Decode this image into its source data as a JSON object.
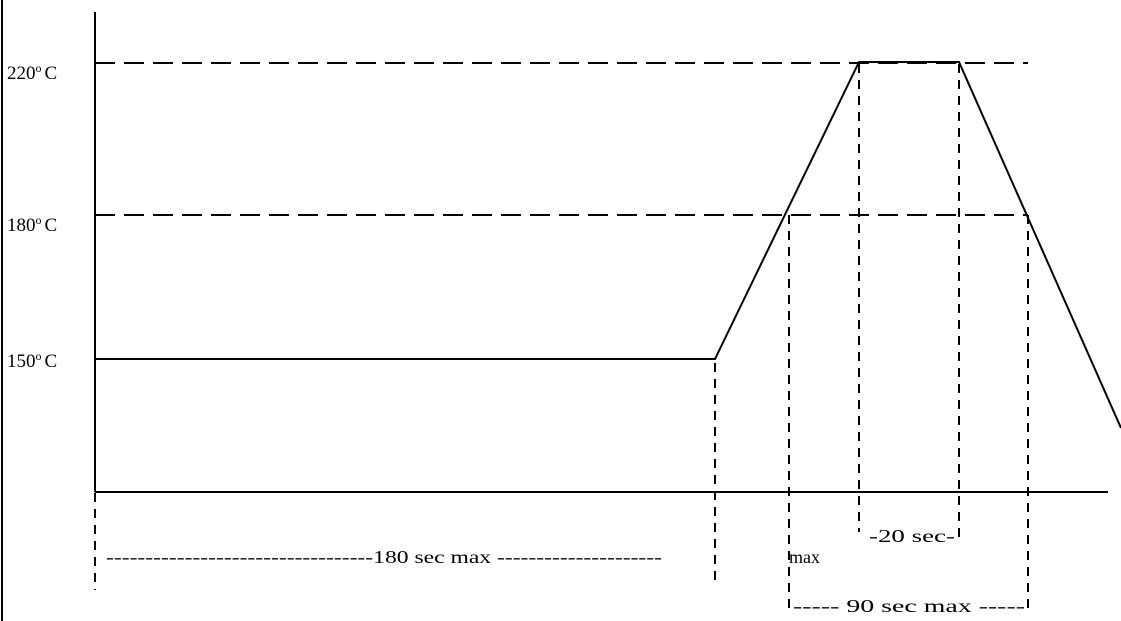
{
  "y_labels": {
    "t220": "220",
    "t180": "180",
    "t150": "150",
    "degree_mark": "o",
    "unit": "C"
  },
  "time_labels": {
    "preheat": "----------------------------------180 sec max ---------------------",
    "ramp_max": "max",
    "peak": "-20 sec-",
    "above_liquidus": "----- 90 sec max -----"
  },
  "colors": {
    "stroke": "#000000",
    "background": "#ffffff"
  }
}
